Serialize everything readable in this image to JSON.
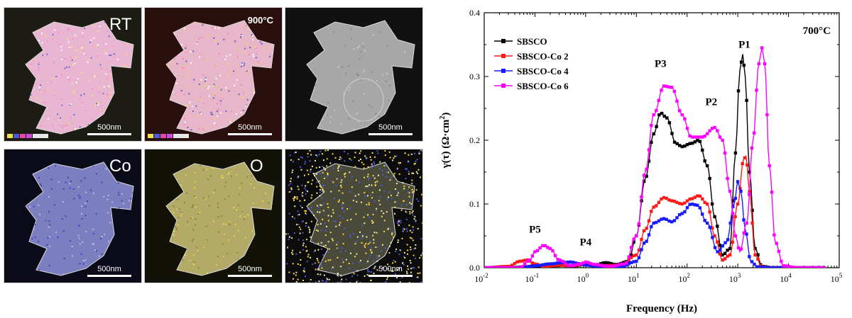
{
  "micrographs": [
    {
      "label": "RT",
      "scale": "500nm",
      "style": "map-multi",
      "has_legend": true
    },
    {
      "label": "900°C",
      "scale": "500nm",
      "style": "map-multi-dark",
      "has_legend": true
    },
    {
      "label": "",
      "scale": "500nm",
      "style": "sem-gray",
      "has_legend": false
    },
    {
      "label": "Co",
      "scale": "500nm",
      "style": "map-blue",
      "has_legend": false
    },
    {
      "label": "O",
      "scale": "500nm",
      "style": "map-yellow",
      "has_legend": false
    },
    {
      "label": "",
      "scale": "500nm",
      "style": "map-speckle",
      "has_legend": false
    }
  ],
  "colors": {
    "SBSCO": "#000000",
    "SBSCO-Co 2": "#ff1a1a",
    "SBSCO-Co 4": "#1a1aff",
    "SBSCO-Co 6": "#ff00ff"
  },
  "chart_data": {
    "type": "line",
    "x_scale": "log",
    "xlabel": "Frequency (Hz)",
    "ylabel_parts": [
      "γ(τ) (Ω·cm",
      "2",
      ")"
    ],
    "xlim": [
      0.01,
      100000
    ],
    "ylim": [
      0,
      0.4
    ],
    "x_ticks": [
      {
        "value": 0.01,
        "base": "10",
        "exp": "-2"
      },
      {
        "value": 0.1,
        "base": "10",
        "exp": "-1"
      },
      {
        "value": 1,
        "base": "10",
        "exp": "0"
      },
      {
        "value": 10,
        "base": "10",
        "exp": "1"
      },
      {
        "value": 100,
        "base": "10",
        "exp": "2"
      },
      {
        "value": 1000,
        "base": "10",
        "exp": "3"
      },
      {
        "value": 10000,
        "base": "10",
        "exp": "4"
      },
      {
        "value": 100000,
        "base": "10",
        "exp": "5"
      }
    ],
    "y_ticks": [
      "0.0",
      "0.1",
      "0.2",
      "0.3",
      "0.4"
    ],
    "temperature": "700°C",
    "legend_position": "top-left",
    "series": [
      {
        "name": "SBSCO",
        "points": [
          [
            0.01,
            0
          ],
          [
            0.03,
            0
          ],
          [
            0.06,
            0.001
          ],
          [
            0.1,
            0.002
          ],
          [
            0.2,
            0.003
          ],
          [
            0.4,
            0.004
          ],
          [
            0.6,
            0.003
          ],
          [
            1,
            0.006
          ],
          [
            1.5,
            0.004
          ],
          [
            2.5,
            0.008
          ],
          [
            4,
            0.005
          ],
          [
            7,
            0.01
          ],
          [
            10,
            0.05
          ],
          [
            15,
            0.14
          ],
          [
            22,
            0.21
          ],
          [
            30,
            0.243
          ],
          [
            40,
            0.235
          ],
          [
            60,
            0.195
          ],
          [
            80,
            0.19
          ],
          [
            120,
            0.195
          ],
          [
            170,
            0.2
          ],
          [
            250,
            0.16
          ],
          [
            350,
            0.08
          ],
          [
            500,
            0.02
          ],
          [
            700,
            0.03
          ],
          [
            900,
            0.18
          ],
          [
            1100,
            0.31
          ],
          [
            1250,
            0.335
          ],
          [
            1400,
            0.3
          ],
          [
            1700,
            0.15
          ],
          [
            2200,
            0.03
          ],
          [
            3000,
            0.002
          ],
          [
            5000,
            0
          ],
          [
            50000,
            0
          ]
        ]
      },
      {
        "name": "SBSCO-Co 2",
        "points": [
          [
            0.01,
            0
          ],
          [
            0.03,
            0.002
          ],
          [
            0.05,
            0.01
          ],
          [
            0.07,
            0.012
          ],
          [
            0.1,
            0.006
          ],
          [
            0.15,
            0.002
          ],
          [
            0.3,
            0.004
          ],
          [
            0.5,
            0.003
          ],
          [
            1,
            0.006
          ],
          [
            2,
            0.003
          ],
          [
            5,
            0.004
          ],
          [
            10,
            0.02
          ],
          [
            15,
            0.06
          ],
          [
            22,
            0.095
          ],
          [
            35,
            0.11
          ],
          [
            50,
            0.105
          ],
          [
            80,
            0.1
          ],
          [
            120,
            0.108
          ],
          [
            170,
            0.113
          ],
          [
            250,
            0.1
          ],
          [
            350,
            0.05
          ],
          [
            500,
            0.012
          ],
          [
            700,
            0.02
          ],
          [
            1000,
            0.1
          ],
          [
            1300,
            0.17
          ],
          [
            1450,
            0.175
          ],
          [
            1700,
            0.12
          ],
          [
            2200,
            0.02
          ],
          [
            3000,
            0.001
          ],
          [
            5000,
            0
          ],
          [
            50000,
            0
          ]
        ]
      },
      {
        "name": "SBSCO-Co 4",
        "points": [
          [
            0.01,
            0
          ],
          [
            0.05,
            0
          ],
          [
            0.1,
            0.003
          ],
          [
            0.2,
            0.006
          ],
          [
            0.35,
            0.008
          ],
          [
            0.5,
            0.009
          ],
          [
            0.8,
            0.006
          ],
          [
            1,
            0.004
          ],
          [
            2,
            0.002
          ],
          [
            5,
            0.002
          ],
          [
            10,
            0.01
          ],
          [
            15,
            0.04
          ],
          [
            22,
            0.07
          ],
          [
            35,
            0.077
          ],
          [
            50,
            0.072
          ],
          [
            80,
            0.085
          ],
          [
            120,
            0.1
          ],
          [
            160,
            0.098
          ],
          [
            250,
            0.07
          ],
          [
            400,
            0.025
          ],
          [
            600,
            0.04
          ],
          [
            850,
            0.1
          ],
          [
            1000,
            0.135
          ],
          [
            1150,
            0.12
          ],
          [
            1400,
            0.06
          ],
          [
            1800,
            0.01
          ],
          [
            2500,
            0.001
          ],
          [
            5000,
            0
          ],
          [
            50000,
            0
          ]
        ]
      },
      {
        "name": "SBSCO-Co 6",
        "points": [
          [
            0.01,
            0
          ],
          [
            0.05,
            0
          ],
          [
            0.08,
            0.012
          ],
          [
            0.1,
            0.025
          ],
          [
            0.15,
            0.035
          ],
          [
            0.2,
            0.03
          ],
          [
            0.3,
            0.012
          ],
          [
            0.5,
            0.003
          ],
          [
            0.8,
            0.006
          ],
          [
            1,
            0.009
          ],
          [
            1.5,
            0.005
          ],
          [
            3,
            0.002
          ],
          [
            6,
            0.006
          ],
          [
            10,
            0.05
          ],
          [
            15,
            0.15
          ],
          [
            22,
            0.24
          ],
          [
            35,
            0.285
          ],
          [
            50,
            0.283
          ],
          [
            80,
            0.24
          ],
          [
            120,
            0.205
          ],
          [
            200,
            0.205
          ],
          [
            350,
            0.22
          ],
          [
            500,
            0.2
          ],
          [
            700,
            0.12
          ],
          [
            900,
            0.05
          ],
          [
            1100,
            0.025
          ],
          [
            1500,
            0.07
          ],
          [
            2000,
            0.2
          ],
          [
            2600,
            0.32
          ],
          [
            3000,
            0.345
          ],
          [
            3400,
            0.32
          ],
          [
            4200,
            0.16
          ],
          [
            5500,
            0.04
          ],
          [
            8000,
            0.003
          ],
          [
            15000,
            0
          ],
          [
            50000,
            0
          ]
        ]
      }
    ],
    "peak_labels": [
      {
        "text": "P1",
        "x": 1350,
        "y": 0.345
      },
      {
        "text": "P2",
        "x": 300,
        "y": 0.255
      },
      {
        "text": "P3",
        "x": 30,
        "y": 0.315
      },
      {
        "text": "P4",
        "x": 1,
        "y": 0.035
      },
      {
        "text": "P5",
        "x": 0.1,
        "y": 0.055
      }
    ]
  }
}
